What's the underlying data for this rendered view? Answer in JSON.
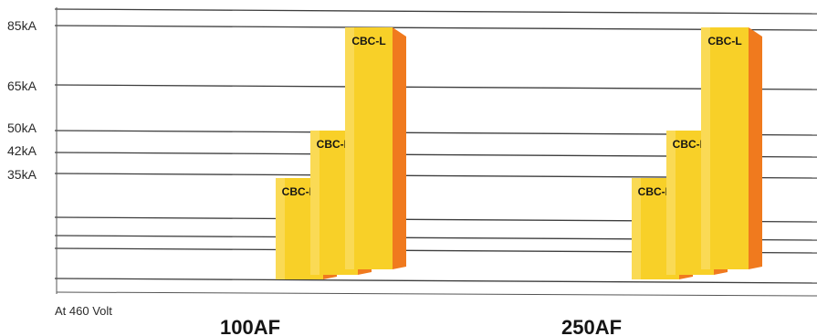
{
  "chart_data": {
    "type": "bar",
    "title": "",
    "ylabel": "",
    "xlabel": "",
    "unit": "kA",
    "note": "At 460 Volt",
    "y_ticks": [
      "85kA",
      "65kA",
      "50kA",
      "42kA",
      "35kA"
    ],
    "y_tick_values": [
      85,
      65,
      50,
      42,
      35
    ],
    "ylim": [
      0,
      85
    ],
    "categories": [
      "100AF",
      "250AF"
    ],
    "series": [
      {
        "name": "CBC-N",
        "values": [
          35,
          35
        ]
      },
      {
        "name": "CBC-H",
        "values": [
          50,
          50
        ]
      },
      {
        "name": "CBC-L",
        "values": [
          85,
          85
        ]
      }
    ],
    "grid": true,
    "colors": {
      "bar_front": "#f8d028",
      "bar_side": "#f07a1e",
      "bar_top": "#fbe27a",
      "grid": "#3e3e3e"
    }
  }
}
